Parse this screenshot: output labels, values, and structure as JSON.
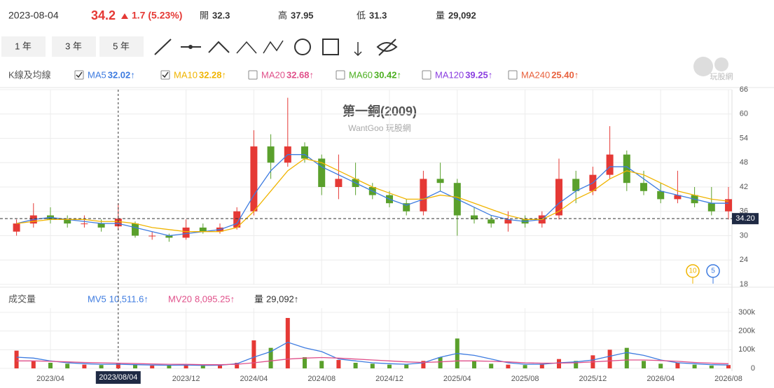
{
  "header": {
    "date": "2023-08-04",
    "price": 34.2,
    "change": "1.7 (5.23%)",
    "open_label": "開",
    "open": 32.3,
    "high_label": "高",
    "high": 37.95,
    "low_label": "低",
    "low": 31.3,
    "volume_label": "量",
    "volume": "29,092"
  },
  "toolbar": {
    "ranges": [
      "1 年",
      "3 年",
      "5 年"
    ]
  },
  "logo": "玩股網",
  "chart_data": [
    {
      "type": "candlestick",
      "title": "第一銅(2009)",
      "subtitle": "WantGoo 玩股網",
      "legend_title": "K線及均線",
      "categories": [
        null,
        null,
        "2023/04",
        null,
        null,
        null,
        null,
        null,
        null,
        null,
        "2023/12",
        null,
        null,
        null,
        "2024/04",
        null,
        null,
        null,
        "2024/08",
        null,
        null,
        null,
        "2024/12",
        null,
        null,
        null,
        "2025/04",
        null,
        null,
        null,
        "2025/08",
        null,
        null,
        null,
        "2025/12",
        null,
        null,
        null,
        "2026/04",
        null,
        null,
        null,
        "2026/08"
      ],
      "open": [
        31,
        33,
        35,
        34,
        33,
        33,
        32.3,
        33,
        30,
        30,
        29.5,
        32,
        31,
        32,
        36,
        52,
        48,
        52,
        49,
        42,
        44,
        42,
        40,
        38,
        36,
        44,
        43,
        35,
        34,
        33,
        34,
        33,
        35,
        44,
        41,
        45,
        50,
        43,
        41,
        39,
        40,
        38,
        36
      ],
      "high": [
        34,
        38,
        37,
        35,
        35,
        34,
        37.95,
        33.5,
        31,
        30.5,
        34,
        33,
        33,
        37,
        56,
        55,
        64,
        53,
        50,
        50,
        48,
        43,
        41,
        39,
        46,
        48,
        44,
        37,
        35,
        36,
        35,
        36,
        49,
        46,
        47,
        57,
        51,
        46,
        43,
        46,
        42,
        42,
        42
      ],
      "low": [
        30,
        32,
        33,
        32,
        32,
        31,
        31.3,
        29.5,
        29,
        28.5,
        29,
        30.5,
        30.5,
        31.5,
        35,
        44,
        47,
        48,
        40,
        39,
        40,
        39,
        37,
        35,
        35,
        41,
        30,
        33,
        32,
        31,
        32,
        32,
        34,
        38,
        40,
        44,
        41,
        40,
        38,
        38,
        37,
        35,
        34
      ],
      "close": [
        33,
        35,
        34,
        33,
        33,
        32,
        34.2,
        30,
        30,
        29.5,
        32,
        31,
        32,
        36,
        52,
        48,
        52,
        49,
        42,
        44,
        42,
        40,
        38,
        36,
        44,
        43,
        35,
        34,
        33,
        34,
        33,
        35,
        44,
        41,
        45,
        50,
        43,
        41,
        39,
        40,
        38,
        36,
        39
      ],
      "up_color": "#e53935",
      "down_color": "#5aa02c",
      "indicators": [
        {
          "name": "MA5",
          "value_label": "32.02↑",
          "color": "#3d7be0",
          "checked": true,
          "values": [
            33,
            34,
            34.5,
            34,
            33.5,
            33,
            33,
            32,
            31,
            30,
            30.5,
            31,
            31.5,
            33,
            40,
            46,
            50,
            50,
            47,
            45,
            43,
            41,
            39,
            37.5,
            39,
            41,
            39,
            37,
            35,
            34,
            33.5,
            34,
            38,
            41,
            43,
            47,
            47,
            44,
            41,
            40,
            39,
            38,
            38
          ]
        },
        {
          "name": "MA10",
          "value_label": "32.28↑",
          "color": "#f0b400",
          "checked": true,
          "values": [
            33,
            33.5,
            34,
            34,
            34,
            33.5,
            33.5,
            33,
            32,
            31.5,
            31,
            31,
            31,
            32,
            36,
            41,
            46,
            49,
            48,
            46,
            44,
            42,
            40.5,
            39,
            39,
            40,
            39.5,
            38,
            36.5,
            35,
            34,
            34,
            36,
            39,
            41,
            44,
            46,
            45,
            43,
            41,
            40,
            39,
            38.5
          ]
        },
        {
          "name": "MA20",
          "value_label": "32.68↑",
          "color": "#e0508a",
          "checked": false
        },
        {
          "name": "MA60",
          "value_label": "30.42↑",
          "color": "#4caf20",
          "checked": false
        },
        {
          "name": "MA120",
          "value_label": "39.25↑",
          "color": "#8a3ee0",
          "checked": false
        },
        {
          "name": "MA240",
          "value_label": "25.40↑",
          "color": "#e8603c",
          "checked": false
        }
      ],
      "ylim": [
        18,
        66
      ],
      "yticks": [
        18,
        24,
        30,
        36,
        42,
        48,
        54,
        60,
        66
      ],
      "current_price": 34.2,
      "current_price_label": "34.20",
      "crosshair_date": "2023/08/04",
      "markers": [
        {
          "label": "10",
          "color": "#f0b400"
        },
        {
          "label": "5",
          "color": "#3d7be0"
        }
      ]
    },
    {
      "type": "volume",
      "legend_title": "成交量",
      "values": [
        95000,
        40000,
        30000,
        25000,
        20000,
        18000,
        29092,
        20000,
        15000,
        15000,
        20000,
        15000,
        15000,
        30000,
        150000,
        110000,
        270000,
        60000,
        40000,
        45000,
        30000,
        25000,
        20000,
        20000,
        40000,
        60000,
        160000,
        40000,
        25000,
        20000,
        18000,
        25000,
        50000,
        40000,
        70000,
        100000,
        110000,
        40000,
        25000,
        30000,
        20000,
        15000,
        18000
      ],
      "indicators": [
        {
          "name": "MV5",
          "value_label": "10,511.6↑",
          "color": "#3d7be0",
          "values": [
            60000,
            55000,
            40000,
            30000,
            25000,
            22000,
            22000,
            20000,
            18000,
            17000,
            18000,
            16000,
            17000,
            25000,
            60000,
            90000,
            140000,
            110000,
            90000,
            50000,
            40000,
            30000,
            25000,
            22000,
            30000,
            60000,
            80000,
            70000,
            50000,
            30000,
            22000,
            22000,
            30000,
            35000,
            45000,
            65000,
            85000,
            70000,
            45000,
            30000,
            25000,
            20000,
            18000
          ]
        },
        {
          "name": "MV20",
          "value_label": "8,095.25↑",
          "color": "#e0508a",
          "values": [
            40000,
            40000,
            38000,
            35000,
            32000,
            30000,
            28000,
            26000,
            24000,
            22000,
            22000,
            20000,
            20000,
            22000,
            30000,
            40000,
            50000,
            55000,
            58000,
            55000,
            50000,
            45000,
            40000,
            35000,
            32000,
            35000,
            40000,
            40000,
            38000,
            35000,
            30000,
            28000,
            28000,
            30000,
            35000,
            40000,
            45000,
            45000,
            42000,
            38000,
            32000,
            28000,
            25000
          ]
        },
        {
          "name": "量",
          "value_label": "29,092↑",
          "color": "#333333"
        }
      ],
      "ylim": [
        0,
        300000
      ],
      "yticks": [
        0,
        {
          "value": 100000,
          "label": "100k"
        },
        {
          "value": 200000,
          "label": "200k"
        },
        {
          "value": 300000,
          "label": "300k"
        }
      ]
    }
  ]
}
